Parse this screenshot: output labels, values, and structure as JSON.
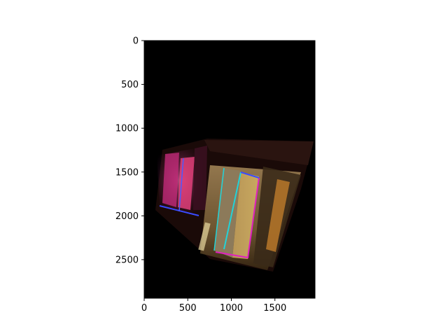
{
  "chart_data": {
    "type": "image",
    "title": "",
    "xlabel": "",
    "ylabel": "",
    "xlim": [
      0,
      1960
    ],
    "ylim": [
      2940,
      0
    ],
    "image_width": 1960,
    "image_height": 2940,
    "x_ticks": [
      0,
      500,
      1000,
      1500
    ],
    "y_ticks": [
      0,
      500,
      1000,
      1500,
      2000,
      2500
    ],
    "x_tick_labels": [
      "0",
      "500",
      "1000",
      "1500"
    ],
    "y_tick_labels": [
      "0",
      "500",
      "1000",
      "1500",
      "2000",
      "2500"
    ],
    "grid": false,
    "colors": {
      "background": "#000000",
      "axes": "#000000",
      "neon_pink": "#ff2fa0",
      "neon_blue": "#3a4bff",
      "neon_cyan": "#22d3d8",
      "neon_magenta": "#e020c0",
      "warm_light": "#c89a50"
    }
  }
}
